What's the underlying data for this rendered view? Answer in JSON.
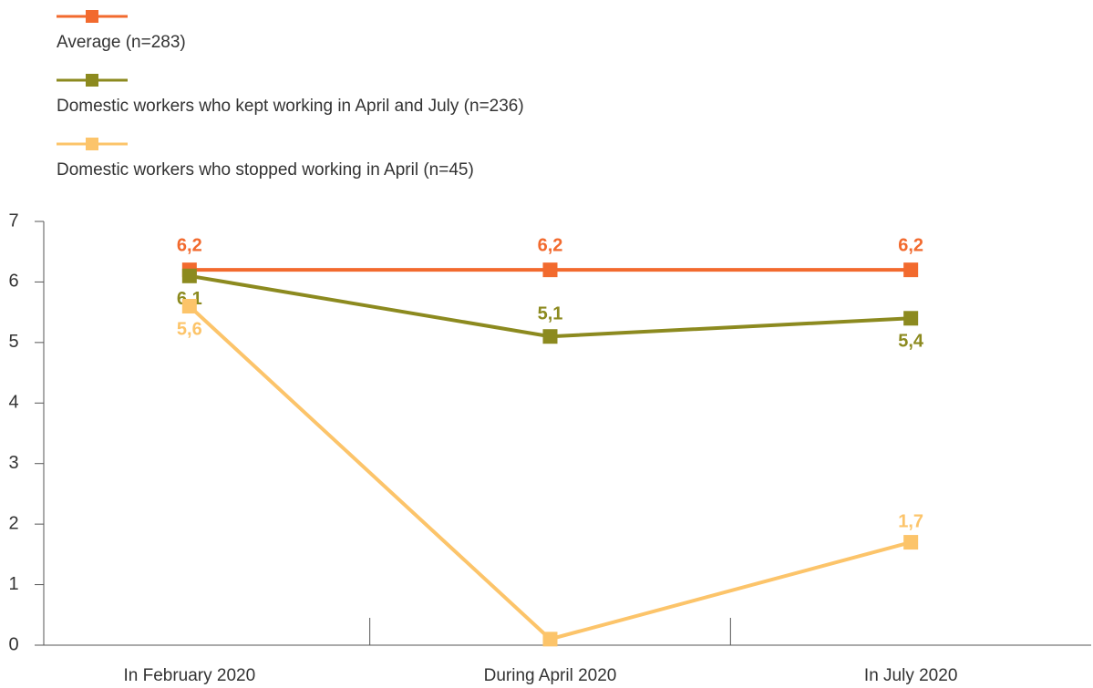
{
  "chart_data": {
    "type": "line",
    "categories": [
      "In February 2020",
      "During April 2020",
      "In July 2020"
    ],
    "series": [
      {
        "name": "Average (n=283)",
        "color": "#f26a2e",
        "values": [
          6.2,
          6.2,
          6.2
        ],
        "value_labels": [
          "6,2",
          "6,2",
          "6,2"
        ]
      },
      {
        "name": "Domestic workers who kept working in April and July (n=236)",
        "color": "#8c8a1f",
        "values": [
          6.1,
          5.1,
          5.4
        ],
        "value_labels": [
          "6,1",
          "5,1",
          "5,4"
        ]
      },
      {
        "name": "Domestic workers who stopped working in April (n=45)",
        "color": "#fcc46a",
        "values": [
          5.6,
          0.1,
          1.7
        ],
        "value_labels": [
          "5,6",
          null,
          "1,7"
        ]
      }
    ],
    "ylim": [
      0,
      7
    ],
    "yticks": [
      0,
      1,
      2,
      3,
      4,
      5,
      6,
      7
    ],
    "legend": "top"
  }
}
